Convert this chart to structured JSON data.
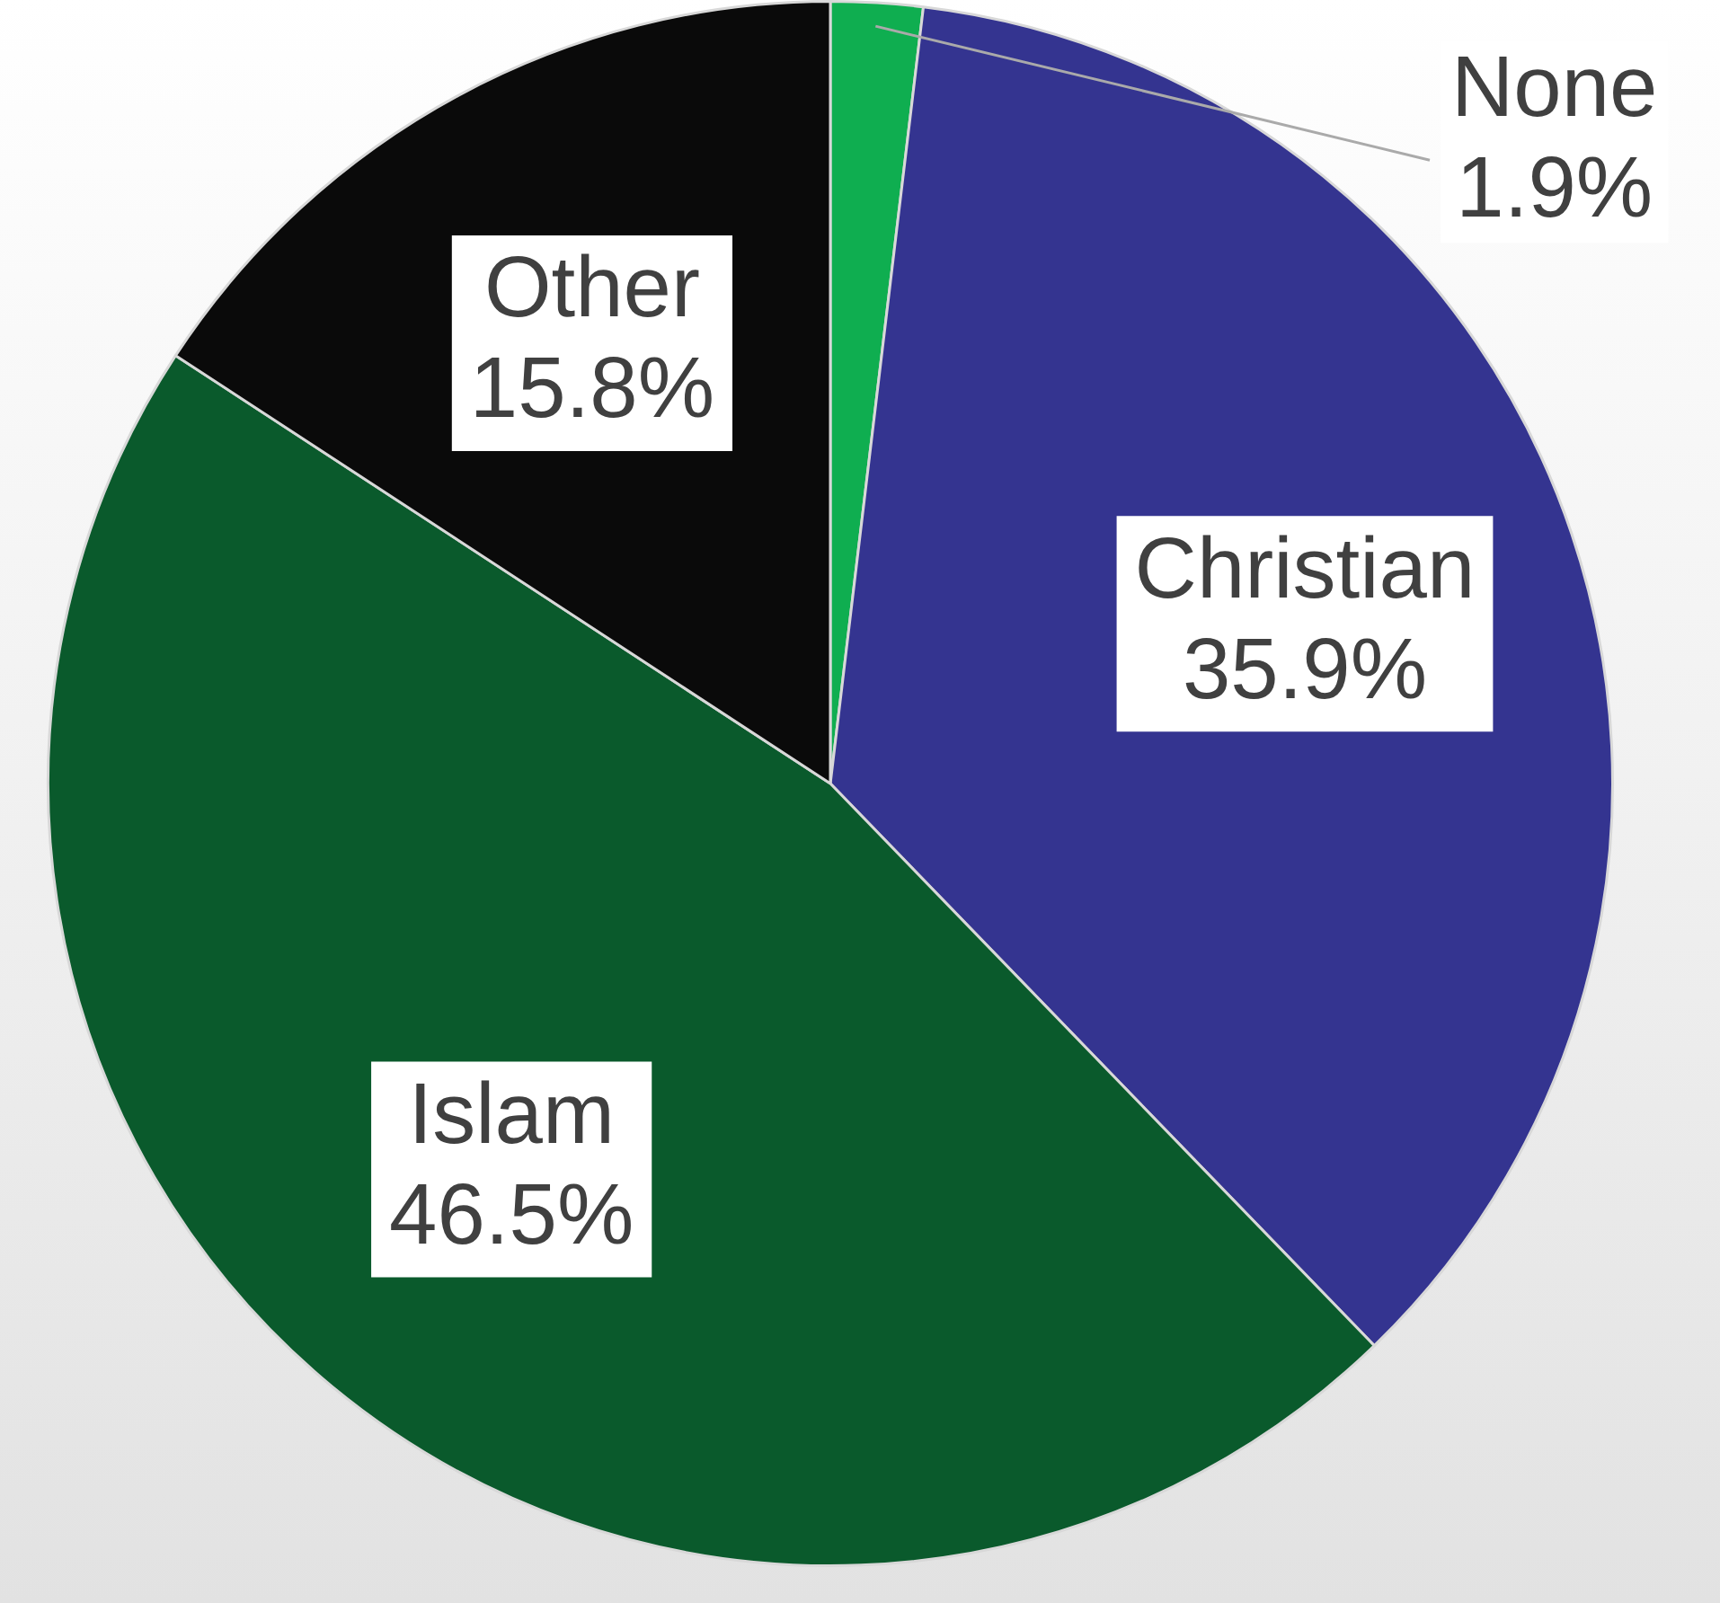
{
  "chart_data": {
    "type": "pie",
    "categories": [
      "None",
      "Christian",
      "Islam",
      "Other"
    ],
    "values": [
      1.9,
      35.9,
      46.5,
      15.8
    ],
    "colors": [
      "#0fae50",
      "#343490",
      "#0a5a2c",
      "#0a0a0a"
    ],
    "value_labels": [
      "1.9%",
      "35.9%",
      "46.5%",
      "15.8%"
    ],
    "legend": false
  }
}
